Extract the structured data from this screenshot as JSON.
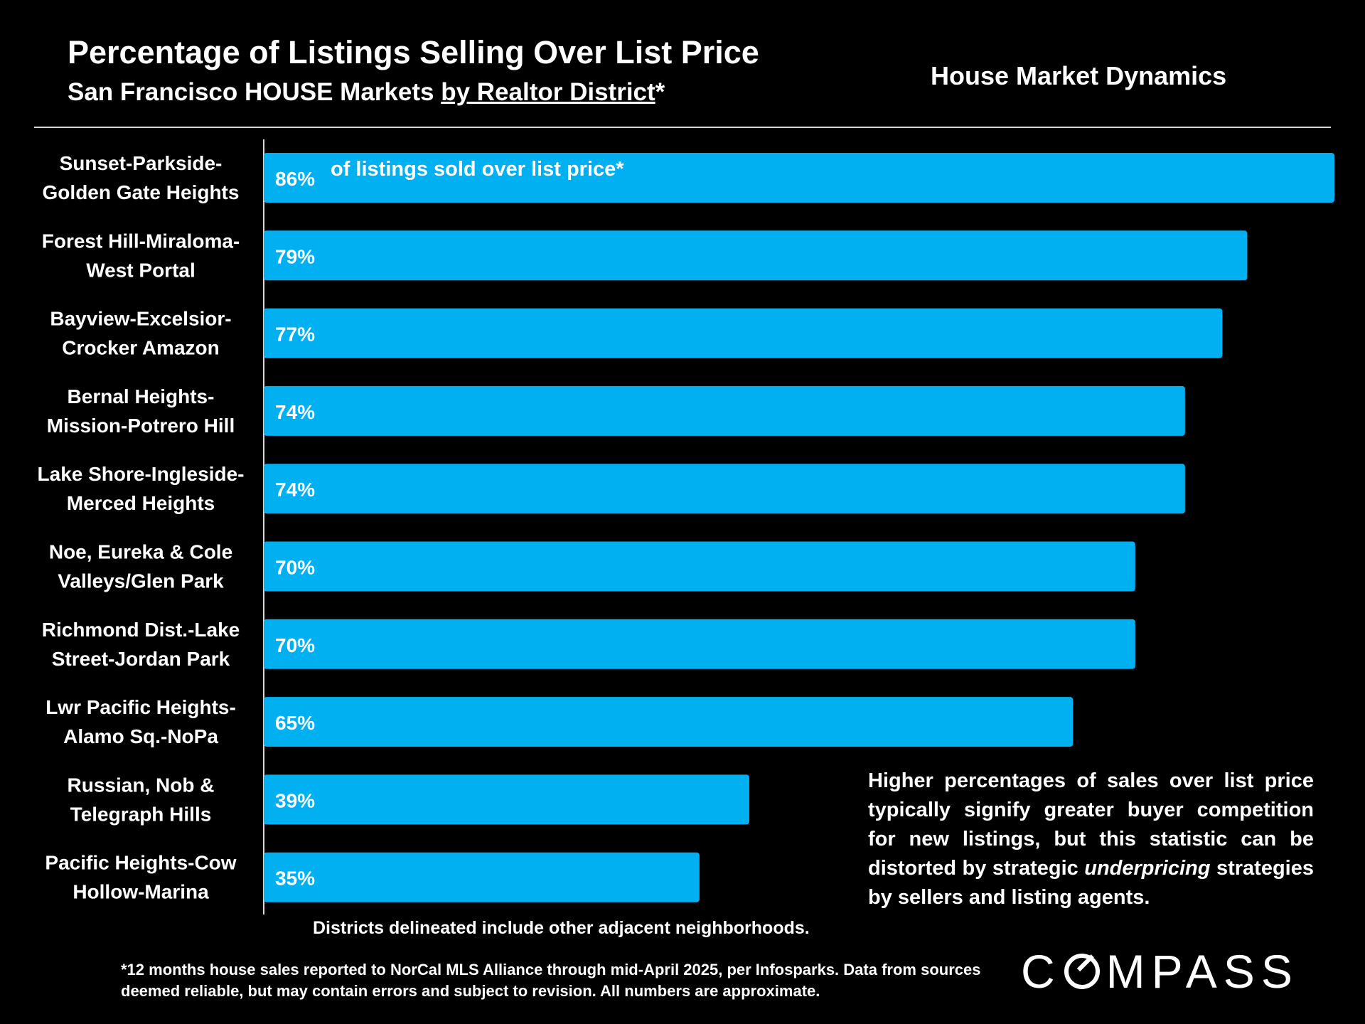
{
  "header": {
    "title": "Percentage of Listings Selling Over List Price",
    "subtitle_prefix": "San Francisco HOUSE Markets ",
    "subtitle_underlined": "by Realtor District",
    "subtitle_suffix": "*",
    "topic": "House Market Dynamics"
  },
  "chart_data": {
    "type": "bar",
    "orientation": "horizontal",
    "categories": [
      [
        "Sunset-Parkside-",
        "Golden Gate Heights"
      ],
      [
        "Forest Hill-Miraloma-",
        "West Portal"
      ],
      [
        "Bayview-Excelsior-",
        "Crocker Amazon"
      ],
      [
        "Bernal Heights-",
        "Mission-Potrero Hill"
      ],
      [
        "Lake Shore-Ingleside-",
        "Merced Heights"
      ],
      [
        "Noe, Eureka & Cole",
        "Valleys/Glen Park"
      ],
      [
        "Richmond Dist.-Lake",
        "Street-Jordan Park"
      ],
      [
        "Lwr Pacific Heights-",
        "Alamo Sq.-NoPa"
      ],
      [
        "Russian, Nob &",
        "Telegraph Hills"
      ],
      [
        "Pacific Heights-Cow",
        "Hollow-Marina"
      ]
    ],
    "values": [
      86,
      79,
      77,
      74,
      74,
      70,
      70,
      65,
      39,
      35
    ],
    "value_labels": [
      "86%",
      "79%",
      "77%",
      "74%",
      "74%",
      "70%",
      "70%",
      "65%",
      "39%",
      "35%"
    ],
    "first_bar_annotation": "of listings sold over list price*",
    "xlim": [
      0,
      86
    ],
    "bar_color": "#00b0f0",
    "grid": false
  },
  "notes": {
    "box_part1": "Higher percentages of sales over list price typically signify greater buyer competition for new listings, but this statistic can be distorted by strategic ",
    "box_emphasis": "underpricing",
    "box_part2": " strategies by sellers and listing agents.",
    "districts": "Districts delineated include other adjacent neighborhoods.",
    "footnote": "*12 months house sales reported to NorCal MLS Alliance through mid-April 2025, per Infosparks. Data from sources deemed reliable, but may contain errors and subject to revision. All numbers are approximate."
  },
  "logo": {
    "before_o": "C",
    "after_o": "MPASS"
  }
}
